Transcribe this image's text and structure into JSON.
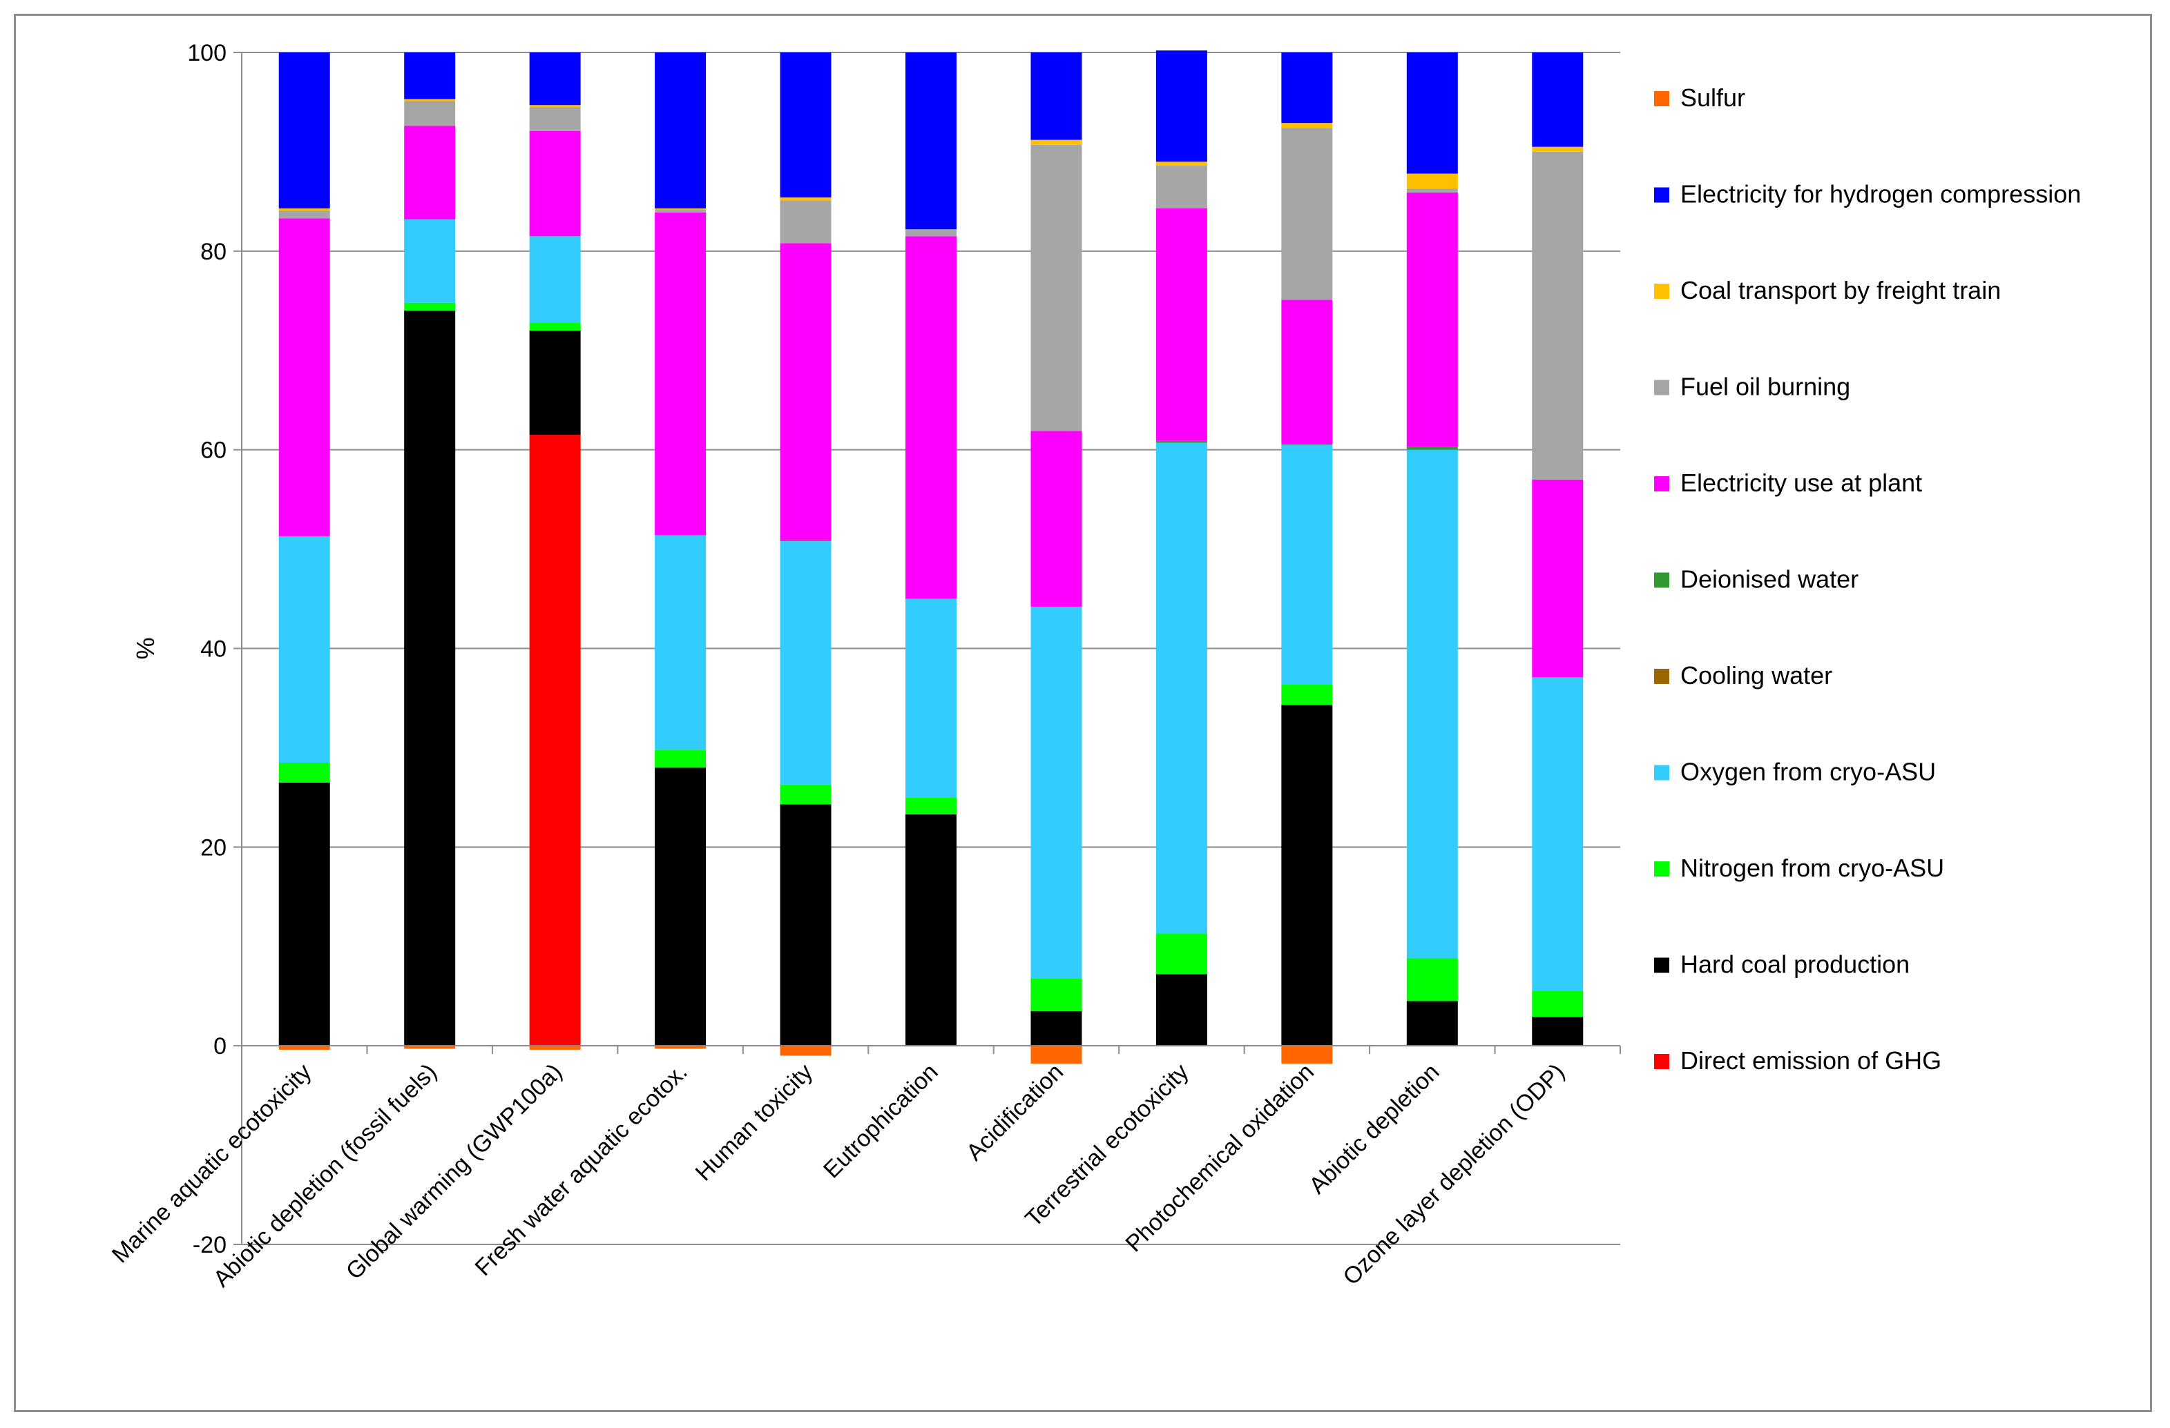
{
  "chart_data": {
    "type": "bar",
    "stacked": true,
    "xlabel": "",
    "ylabel": "%",
    "ylim": [
      -20,
      100
    ],
    "yticks": [
      -20,
      0,
      20,
      40,
      60,
      80,
      100
    ],
    "grid": true,
    "legend_position": "right",
    "categories": [
      "Marine aquatic ecotoxicity",
      "Abiotic depletion (fossil fuels)",
      "Global warming (GWP100a)",
      "Fresh water aquatic ecotox.",
      "Human toxicity",
      "Eutrophication",
      "Acidification",
      "Terrestrial ecotoxicity",
      "Photochemical oxidation",
      "Abiotic depletion",
      "Ozone layer depletion (ODP)"
    ],
    "series": [
      {
        "name": "Direct emission of GHG",
        "color": "#ff0000",
        "values": [
          0,
          0,
          61.5,
          0,
          0,
          0,
          0,
          0,
          0,
          0,
          0
        ]
      },
      {
        "name": "Hard coal production",
        "color": "#000000",
        "values": [
          26.5,
          74,
          10.5,
          28,
          24.3,
          23.3,
          3.5,
          7.2,
          34.3,
          4.5,
          2.9
        ]
      },
      {
        "name": "Nitrogen from cryo-ASU",
        "color": "#00ff00",
        "values": [
          2,
          0.8,
          0.8,
          1.8,
          2,
          1.7,
          3.3,
          4.1,
          2.1,
          4.3,
          2.6
        ]
      },
      {
        "name": "Oxygen from cryo-ASU",
        "color": "#33ccff",
        "values": [
          22.8,
          8.4,
          8.7,
          21.6,
          24.5,
          20,
          37.4,
          49.4,
          24.1,
          51.2,
          31.6
        ]
      },
      {
        "name": "Cooling water",
        "color": "#996600",
        "values": [
          0,
          0,
          0,
          0,
          0.1,
          0,
          0,
          0,
          0,
          0,
          0
        ]
      },
      {
        "name": "Deionised water",
        "color": "#339933",
        "values": [
          0,
          0,
          0,
          0,
          0,
          0,
          0,
          0.2,
          0.1,
          0.3,
          0
        ]
      },
      {
        "name": "Electricity use at plant",
        "color": "#ff00ff",
        "values": [
          32,
          9.4,
          10.6,
          32.5,
          29.9,
          36.5,
          17.7,
          23.4,
          14.5,
          25.6,
          19.9
        ]
      },
      {
        "name": "Fuel oil burning",
        "color": "#a6a6a6",
        "values": [
          0.8,
          2.5,
          2.4,
          0.3,
          4.3,
          0.7,
          28.8,
          4.3,
          17.3,
          0.4,
          33
        ]
      },
      {
        "name": "Coal transport by freight train",
        "color": "#ffc000",
        "values": [
          0.2,
          0.2,
          0.2,
          0.1,
          0.3,
          0,
          0.5,
          0.4,
          0.5,
          1.5,
          0.5
        ]
      },
      {
        "name": "Electricity for hydrogen compression",
        "color": "#0000ff",
        "values": [
          15.7,
          4.7,
          5.3,
          15.7,
          14.6,
          17.8,
          8.8,
          11.2,
          7.1,
          12.2,
          9.5
        ]
      },
      {
        "name": "Sulfur",
        "color": "#ff6600",
        "values": [
          -0.4,
          -0.3,
          -0.4,
          -0.3,
          -1,
          0,
          -1.8,
          0,
          -1.8,
          0,
          0
        ]
      }
    ]
  }
}
